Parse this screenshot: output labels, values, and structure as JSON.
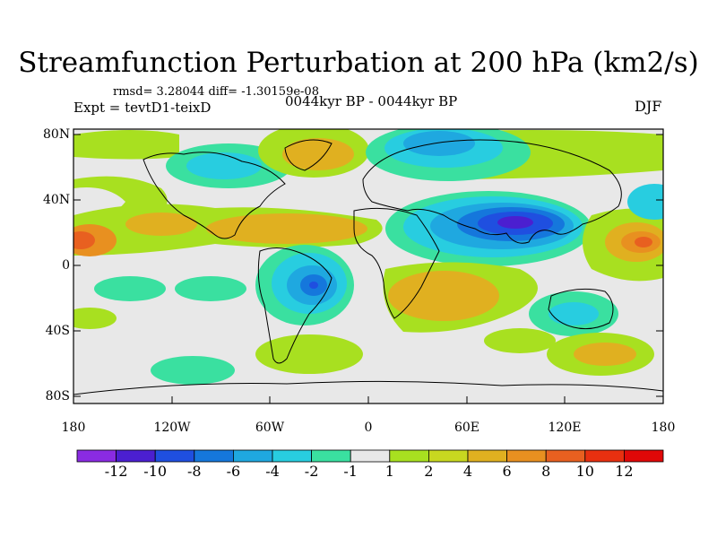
{
  "title": "Streamfunction Perturbation at 200 hPa (km2/s)",
  "stats_line": "rmsd= 3.28044 diff= -1.30159e-08",
  "experiment_line": "Expt = tevtD1-teixD",
  "period_line": "0044kyr BP - 0044kyr BP",
  "season": "DJF",
  "lat_labels": [
    "80N",
    "40N",
    "0",
    "40S",
    "80S"
  ],
  "lon_labels": [
    "180",
    "120W",
    "60W",
    "0",
    "60E",
    "120E",
    "180"
  ],
  "colorbar": {
    "labels": [
      "-12",
      "-10",
      "-8",
      "-6",
      "-4",
      "-2",
      "-1",
      "1",
      "2",
      "4",
      "6",
      "8",
      "10",
      "12"
    ],
    "colors": [
      "#8a2be2",
      "#4b1fd0",
      "#1f4fe0",
      "#1577dc",
      "#1fa8e0",
      "#28cde0",
      "#3ae0a0",
      "#e8e8e8",
      "#a8e020",
      "#c8d820",
      "#e0b020",
      "#e89020",
      "#e86020",
      "#e83010",
      "#e00808"
    ]
  }
}
